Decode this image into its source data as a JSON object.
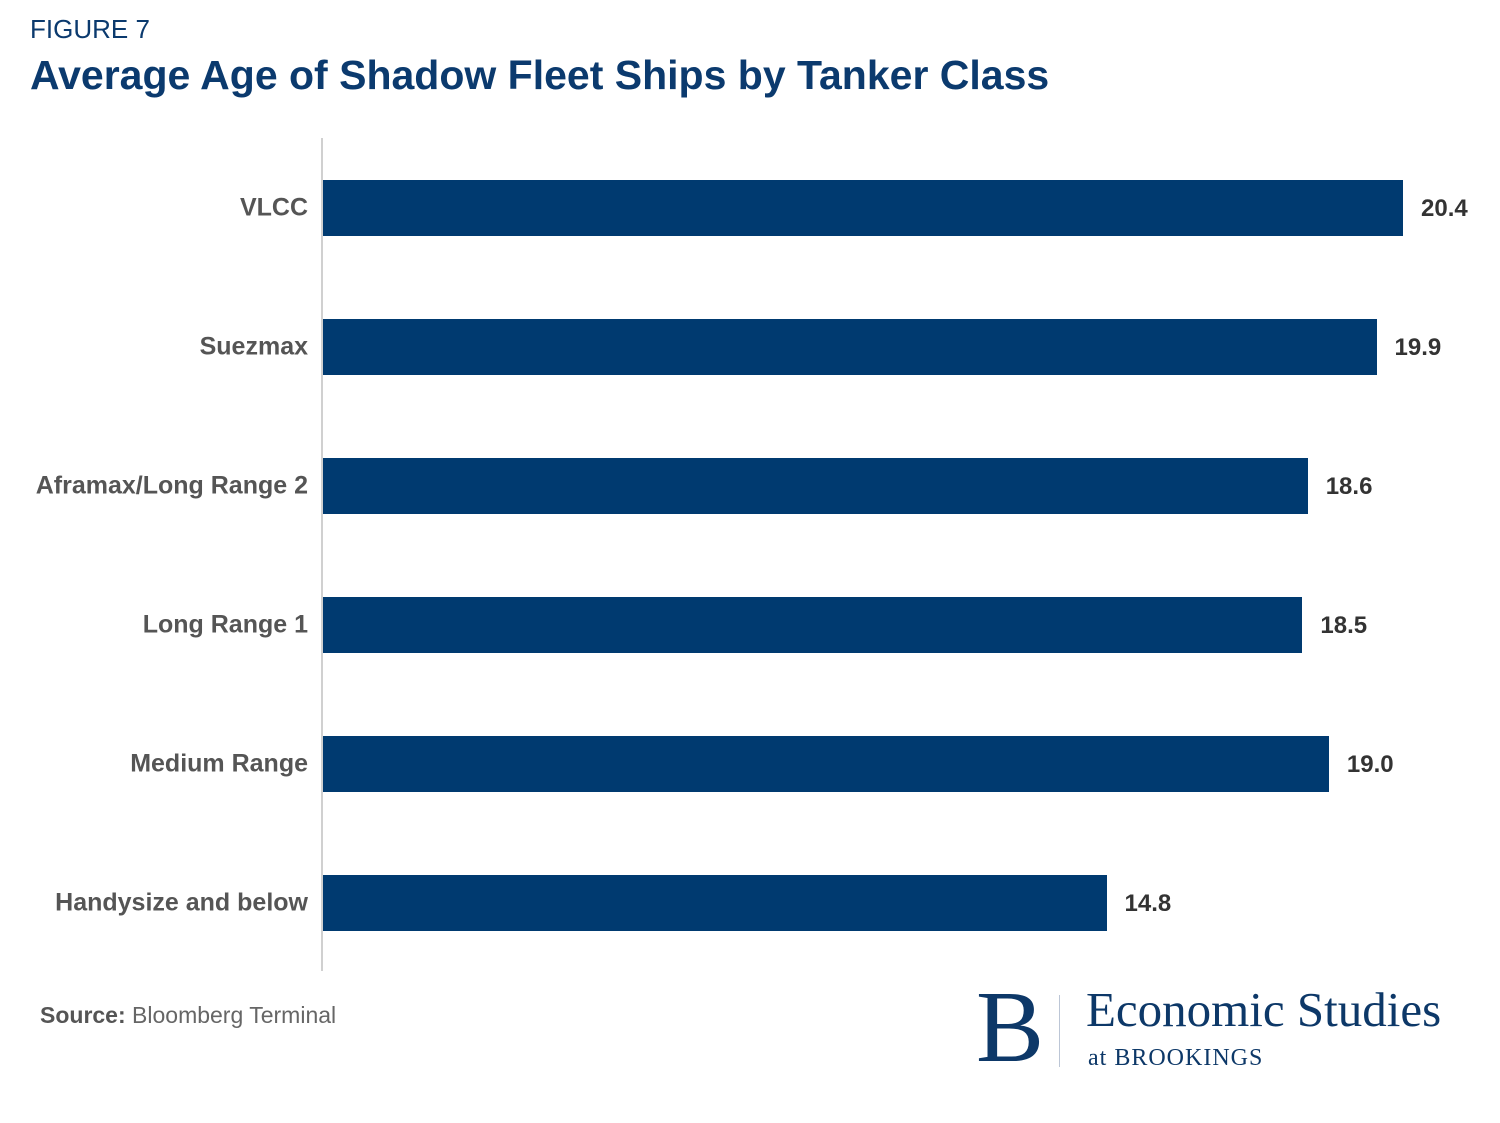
{
  "figure_label": "FIGURE 7",
  "title": "Average Age of Shadow Fleet Ships by Tanker Class",
  "source_label": "Source:",
  "source_text": "Bloomberg Terminal",
  "logo": {
    "letter": "B",
    "name": "Economic Studies",
    "sub": "at BROOKINGS"
  },
  "colors": {
    "bar": "#003a70",
    "title": "#0b3a6e"
  },
  "chart_data": {
    "type": "bar",
    "orientation": "horizontal",
    "title": "Average Age of Shadow Fleet Ships by Tanker Class",
    "categories": [
      "VLCC",
      "Suezmax",
      "Aframax/Long Range 2",
      "Long Range 1",
      "Medium Range",
      "Handysize and below"
    ],
    "values": [
      20.4,
      19.9,
      18.6,
      18.5,
      19.0,
      14.8
    ],
    "value_labels": [
      "20.4",
      "19.9",
      "18.6",
      "18.5",
      "19.0",
      "14.8"
    ],
    "xlim": [
      0,
      20.4
    ],
    "grid": false,
    "legend": "none"
  }
}
